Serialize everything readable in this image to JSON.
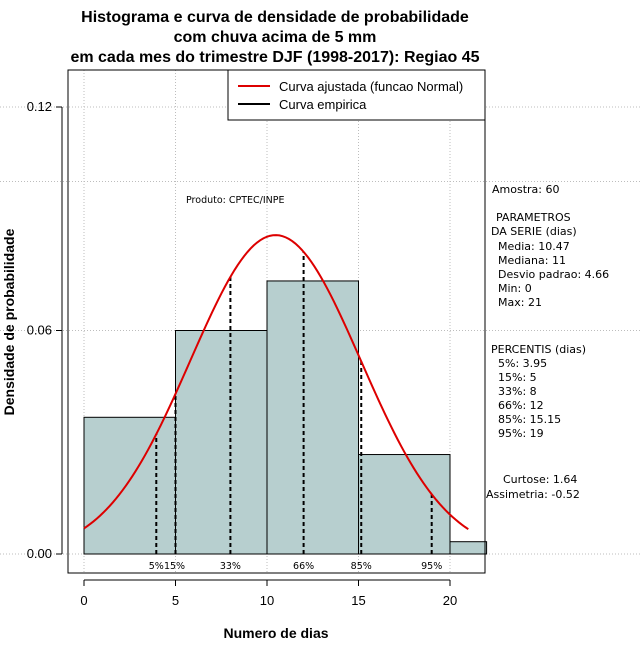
{
  "chart_data": {
    "type": "bar",
    "title_lines": [
      "Histograma e curva de densidade de probabilidade",
      "com chuva acima de 5 mm",
      "em cada mes do trimestre DJF (1998-2017): Regiao 45"
    ],
    "xlabel": "Numero de dias",
    "ylabel": "Densidade de probabilidade",
    "xlim": [
      -1,
      22
    ],
    "ylim": [
      0,
      0.13
    ],
    "x_ticks": [
      0,
      5,
      10,
      15,
      20
    ],
    "x_tick_labels": [
      "0",
      "5",
      "10",
      "15",
      "20"
    ],
    "y_ticks": [
      0,
      0.06,
      0.12
    ],
    "y_tick_labels": [
      "0.00",
      "0.06",
      "0.12"
    ],
    "grid_x": [
      0,
      5,
      10,
      15,
      20
    ],
    "grid_y": [
      0,
      0.06,
      0.1,
      0.12
    ],
    "bar_color": "#b7cfcf",
    "bins": [
      {
        "start": 0,
        "end": 5,
        "density": 0.0367
      },
      {
        "start": 5,
        "end": 10,
        "density": 0.06
      },
      {
        "start": 10,
        "end": 15,
        "density": 0.0733
      },
      {
        "start": 15,
        "end": 20,
        "density": 0.0267
      },
      {
        "start": 20,
        "end": 22,
        "density": 0.0033
      }
    ],
    "normal_fit": {
      "mean": 10.47,
      "sd": 4.66,
      "x_start": 0,
      "x_end": 21,
      "color": "#dd0000"
    },
    "percentile_lines": [
      {
        "x": 3.95,
        "label": "5%"
      },
      {
        "x": 5,
        "label": "15%"
      },
      {
        "x": 8,
        "label": "33%"
      },
      {
        "x": 12,
        "label": "66%"
      },
      {
        "x": 15.15,
        "label": "85%"
      },
      {
        "x": 19,
        "label": "95%"
      }
    ],
    "legend": {
      "placement": "top-right",
      "entries": [
        {
          "label": "Curva ajustada (funcao Normal)",
          "color": "#dd0000"
        },
        {
          "label": "Curva empirica",
          "color": "#000000"
        }
      ]
    },
    "annotation_produto": "Produto: CPTEC/INPE",
    "stats": {
      "amostra": "Amostra: 60",
      "parametros_title": "PARAMETROS",
      "serie_title": "DA SERIE (dias)",
      "media": "Media: 10.47",
      "mediana": "Mediana: 11",
      "desvio": "Desvio padrao: 4.66",
      "min": "Min: 0",
      "max": "Max: 21",
      "percentis_title": "PERCENTIS (dias)",
      "p5": "5%: 3.95",
      "p15": "15%: 5",
      "p33": "33%: 8",
      "p66": "66%: 12",
      "p85": "85%: 15.15",
      "p95": "95%: 19",
      "curtose": "Curtose: 1.64",
      "assimetria": "Assimetria: -0.52"
    }
  }
}
